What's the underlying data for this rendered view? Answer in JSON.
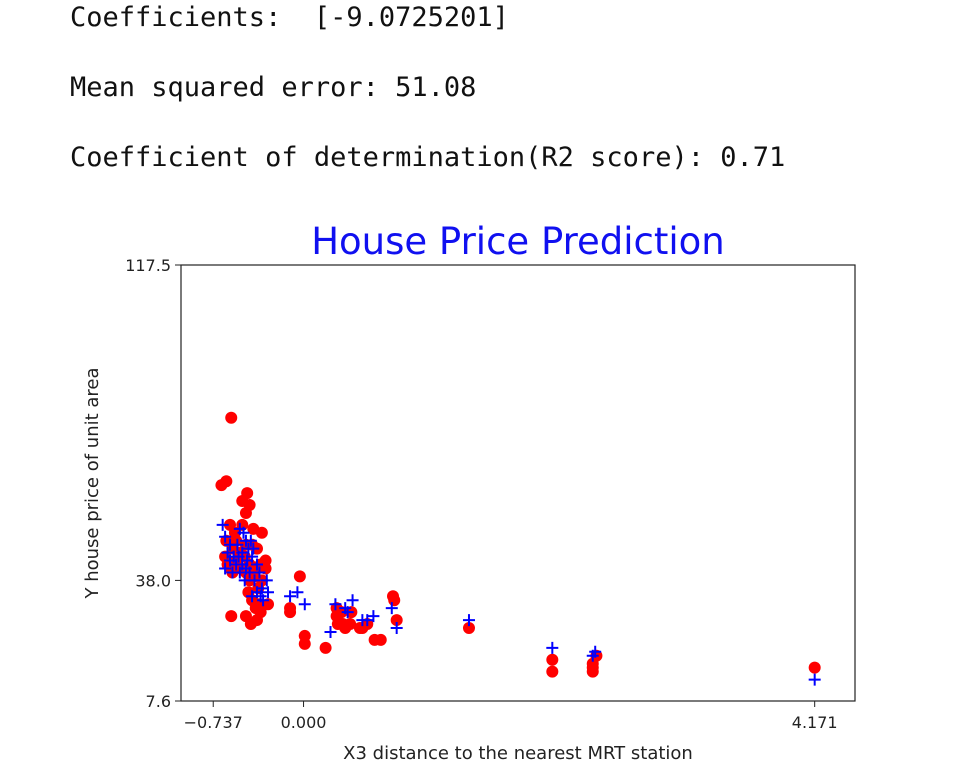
{
  "output": {
    "coefficients": "Coefficients:  [-9.0725201]",
    "mse": "Mean squared error: 51.08",
    "r2": "Coefficient of determination(R2 score): 0.71"
  },
  "colors": {
    "actual": "#ff0000",
    "predicted": "#0000ff",
    "title": "#1010f0"
  },
  "chart_data": {
    "type": "scatter",
    "title": "House Price Prediction",
    "xlabel": "X3 distance to the nearest MRT station",
    "ylabel": "Y house price of unit area",
    "xlim": [
      -1.0,
      4.5
    ],
    "ylim": [
      7.6,
      117.5
    ],
    "xticks": [
      {
        "value": -0.737,
        "label": "−0.737"
      },
      {
        "value": 0.0,
        "label": "0.000"
      },
      {
        "value": 4.171,
        "label": "4.171"
      }
    ],
    "yticks": [
      {
        "value": 7.6,
        "label": "7.6"
      },
      {
        "value": 38.0,
        "label": "38.0"
      },
      {
        "value": 117.5,
        "label": "117.5"
      }
    ],
    "grid": false,
    "legend": "none",
    "series": [
      {
        "marker": "circle",
        "color": "#ff0000",
        "points": [
          [
            -0.59,
            79
          ],
          [
            -0.67,
            62
          ],
          [
            -0.63,
            63
          ],
          [
            -0.5,
            58
          ],
          [
            -0.46,
            60
          ],
          [
            -0.44,
            57
          ],
          [
            -0.47,
            55
          ],
          [
            -0.6,
            52
          ],
          [
            -0.5,
            52
          ],
          [
            -0.41,
            51
          ],
          [
            -0.56,
            50
          ],
          [
            -0.34,
            50
          ],
          [
            -0.63,
            48
          ],
          [
            -0.55,
            48
          ],
          [
            -0.47,
            47
          ],
          [
            -0.42,
            47
          ],
          [
            -0.58,
            46
          ],
          [
            -0.52,
            45
          ],
          [
            -0.48,
            44
          ],
          [
            -0.38,
            46
          ],
          [
            -0.64,
            44
          ],
          [
            -0.55,
            43
          ],
          [
            -0.44,
            42
          ],
          [
            -0.35,
            42
          ],
          [
            -0.31,
            43
          ],
          [
            -0.62,
            42
          ],
          [
            -0.51,
            41
          ],
          [
            -0.6,
            41
          ],
          [
            -0.38,
            41
          ],
          [
            -0.31,
            41
          ],
          [
            -0.58,
            40
          ],
          [
            -0.47,
            40
          ],
          [
            -0.4,
            39
          ],
          [
            -0.44,
            38
          ],
          [
            -0.34,
            38
          ],
          [
            -0.37,
            36
          ],
          [
            -0.45,
            35
          ],
          [
            -0.42,
            33
          ],
          [
            -0.36,
            32
          ],
          [
            -0.29,
            32
          ],
          [
            -0.39,
            31
          ],
          [
            -0.35,
            30
          ],
          [
            -0.59,
            29
          ],
          [
            -0.47,
            29
          ],
          [
            -0.38,
            28
          ],
          [
            -0.43,
            27
          ],
          [
            -0.03,
            39
          ],
          [
            -0.11,
            31
          ],
          [
            -0.11,
            30
          ],
          [
            0.27,
            31
          ],
          [
            0.31,
            30
          ],
          [
            0.27,
            29
          ],
          [
            0.39,
            30
          ],
          [
            0.38,
            27
          ],
          [
            0.32,
            27
          ],
          [
            0.28,
            27
          ],
          [
            0.34,
            26
          ],
          [
            0.46,
            26
          ],
          [
            0.48,
            26
          ],
          [
            0.01,
            24
          ],
          [
            0.01,
            22
          ],
          [
            0.18,
            21
          ],
          [
            0.58,
            23
          ],
          [
            0.63,
            23
          ],
          [
            0.52,
            27
          ],
          [
            0.73,
            34
          ],
          [
            0.74,
            33
          ],
          [
            0.76,
            28
          ],
          [
            1.35,
            26
          ],
          [
            2.03,
            18
          ],
          [
            2.03,
            15
          ],
          [
            2.36,
            17
          ],
          [
            2.36,
            16
          ],
          [
            2.36,
            15
          ],
          [
            2.39,
            19
          ],
          [
            4.171,
            16
          ]
        ]
      },
      {
        "marker": "plus",
        "color": "#0000ff",
        "points": [
          [
            -0.66,
            52
          ],
          [
            -0.64,
            49
          ],
          [
            -0.6,
            47
          ],
          [
            -0.54,
            47
          ],
          [
            -0.52,
            51
          ],
          [
            -0.49,
            50
          ],
          [
            -0.47,
            48
          ],
          [
            -0.45,
            46
          ],
          [
            -0.43,
            48
          ],
          [
            -0.41,
            46
          ],
          [
            -0.62,
            45
          ],
          [
            -0.57,
            44
          ],
          [
            -0.53,
            44
          ],
          [
            -0.5,
            45
          ],
          [
            -0.46,
            43
          ],
          [
            -0.42,
            44
          ],
          [
            -0.6,
            43
          ],
          [
            -0.55,
            42
          ],
          [
            -0.5,
            42
          ],
          [
            -0.47,
            41
          ],
          [
            -0.38,
            42
          ],
          [
            -0.64,
            41
          ],
          [
            -0.58,
            40
          ],
          [
            -0.52,
            40
          ],
          [
            -0.44,
            40
          ],
          [
            -0.36,
            40
          ],
          [
            -0.4,
            38
          ],
          [
            -0.48,
            38
          ],
          [
            -0.3,
            38
          ],
          [
            -0.34,
            36
          ],
          [
            -0.38,
            35
          ],
          [
            -0.42,
            34
          ],
          [
            -0.29,
            35
          ],
          [
            -0.35,
            34
          ],
          [
            -0.33,
            33
          ],
          [
            -0.11,
            34
          ],
          [
            -0.05,
            35
          ],
          [
            0.01,
            32
          ],
          [
            0.26,
            32
          ],
          [
            0.34,
            31
          ],
          [
            0.36,
            30
          ],
          [
            0.4,
            33
          ],
          [
            0.22,
            25
          ],
          [
            0.48,
            28
          ],
          [
            0.57,
            29
          ],
          [
            0.52,
            28
          ],
          [
            0.72,
            31
          ],
          [
            0.76,
            26
          ],
          [
            1.35,
            28
          ],
          [
            2.03,
            21
          ],
          [
            2.36,
            19
          ],
          [
            2.38,
            20
          ],
          [
            4.171,
            13
          ]
        ]
      }
    ]
  }
}
